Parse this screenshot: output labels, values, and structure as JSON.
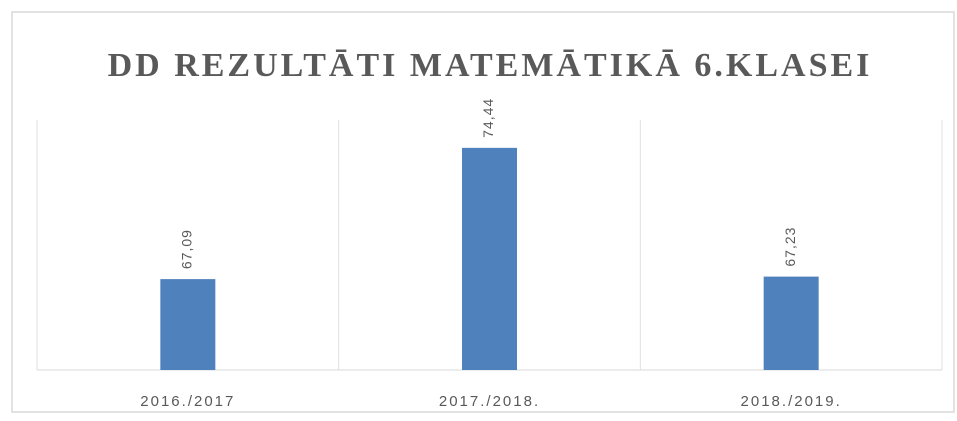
{
  "chart_data": {
    "type": "bar",
    "title": "DD REZULTĀTI MATEMĀTIKĀ 6.KLASEI",
    "categories": [
      "2016./2017",
      "2017./2018.",
      "2018./2019."
    ],
    "values": [
      67.09,
      74.44,
      67.23
    ],
    "value_labels": [
      "67,09",
      "74,44",
      "67,23"
    ],
    "color": "#4f81bd",
    "ylim": [
      62,
      76
    ]
  }
}
